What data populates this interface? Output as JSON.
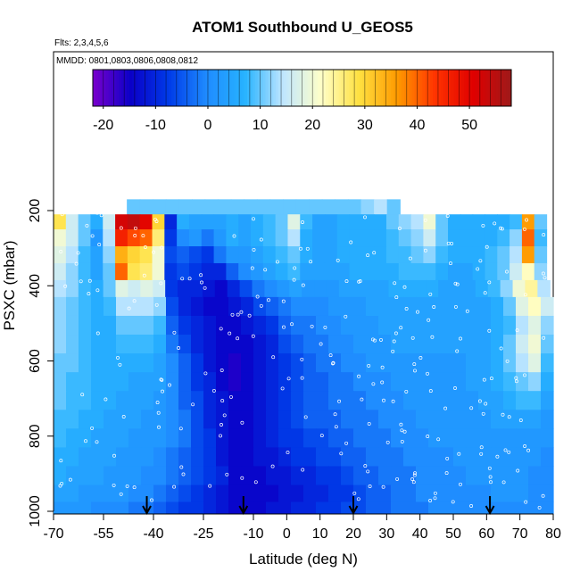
{
  "chart_data": {
    "type": "heatmap",
    "title": "ATOM1 Southbound U_GEOS5",
    "subtitles": [
      "Flts: 2,3,4,5,6",
      "MMDD: 0801,0803,0806,0808,0812"
    ],
    "xlabel": "Latitude (deg N)",
    "ylabel": "PSXC (mbar)",
    "x_ticks": [
      -70,
      -55,
      -40,
      -25,
      -10,
      0,
      10,
      20,
      30,
      40,
      50,
      60,
      70,
      80
    ],
    "y_ticks": [
      200,
      400,
      600,
      800,
      1000
    ],
    "xlim": [
      -70,
      80
    ],
    "ylim": [
      1000,
      120
    ],
    "y_reversed": true,
    "colorbar": {
      "ticks": [
        -20,
        -10,
        0,
        10,
        20,
        30,
        40,
        50
      ],
      "range": [
        -22,
        58
      ],
      "colors": [
        "#7a00cc",
        "#0a00c8",
        "#003be8",
        "#1f8cff",
        "#27b3ff",
        "#bfe6ff",
        "#ffffc8",
        "#ffe040",
        "#ff9a00",
        "#ff3300",
        "#e00000",
        "#9e1a1a"
      ]
    },
    "layers": [
      {
        "p_top": 170,
        "p_bot": 210,
        "x_start": -48,
        "x_end": 34,
        "values": [
          10,
          10,
          10,
          10,
          10,
          10,
          10,
          10,
          10,
          10,
          10,
          10,
          10,
          10,
          10,
          10,
          10,
          10,
          12,
          14,
          10
        ]
      },
      {
        "p_top": 210,
        "p_bot": 250,
        "x_start": -70,
        "x_end": 78,
        "values": [
          28,
          16,
          10,
          6,
          16,
          52,
          54,
          50,
          30,
          -10,
          6,
          4,
          4,
          4,
          6,
          4,
          6,
          8,
          10,
          18,
          8,
          4,
          4,
          6,
          6,
          6,
          6,
          10,
          12,
          14,
          20,
          10,
          6,
          6,
          6,
          6,
          6,
          8,
          36,
          10
        ]
      },
      {
        "p_top": 250,
        "p_bot": 295,
        "x_start": -70,
        "x_end": 78,
        "values": [
          20,
          16,
          10,
          2,
          14,
          46,
          42,
          40,
          26,
          -8,
          0,
          2,
          -2,
          2,
          6,
          4,
          6,
          8,
          10,
          14,
          6,
          4,
          4,
          6,
          6,
          6,
          6,
          8,
          10,
          12,
          16,
          10,
          6,
          6,
          6,
          6,
          8,
          12,
          40,
          8
        ]
      },
      {
        "p_top": 295,
        "p_bot": 340,
        "x_start": -70,
        "x_end": 78,
        "values": [
          18,
          14,
          8,
          4,
          12,
          34,
          30,
          28,
          20,
          -6,
          -4,
          -6,
          -8,
          -2,
          2,
          2,
          4,
          6,
          8,
          10,
          6,
          4,
          4,
          6,
          6,
          6,
          6,
          8,
          8,
          10,
          12,
          8,
          6,
          6,
          6,
          8,
          10,
          14,
          36,
          10
        ]
      },
      {
        "p_top": 340,
        "p_bot": 385,
        "x_start": -70,
        "x_end": 78,
        "values": [
          16,
          12,
          8,
          4,
          10,
          40,
          28,
          26,
          20,
          -8,
          -6,
          -8,
          -10,
          -10,
          -4,
          0,
          2,
          4,
          6,
          8,
          4,
          4,
          4,
          4,
          6,
          6,
          6,
          6,
          8,
          8,
          8,
          6,
          4,
          4,
          6,
          8,
          10,
          16,
          22,
          12
        ]
      },
      {
        "p_top": 385,
        "p_bot": 430,
        "x_start": -70,
        "x_end": 79,
        "values": [
          14,
          12,
          8,
          6,
          10,
          18,
          16,
          18,
          16,
          -8,
          -10,
          -10,
          -12,
          -14,
          -10,
          -6,
          -2,
          0,
          2,
          4,
          2,
          2,
          2,
          4,
          4,
          4,
          4,
          6,
          6,
          6,
          6,
          4,
          4,
          4,
          6,
          8,
          12,
          20,
          24,
          14
        ]
      },
      {
        "p_top": 430,
        "p_bot": 480,
        "x_start": -70,
        "x_end": 80,
        "values": [
          12,
          10,
          8,
          6,
          8,
          14,
          14,
          14,
          12,
          -6,
          -10,
          -12,
          -14,
          -14,
          -12,
          -10,
          -6,
          -4,
          -2,
          0,
          0,
          0,
          2,
          2,
          2,
          4,
          4,
          4,
          4,
          4,
          4,
          4,
          4,
          4,
          4,
          6,
          10,
          18,
          22,
          16
        ]
      },
      {
        "p_top": 480,
        "p_bot": 530,
        "x_start": -70,
        "x_end": 80,
        "values": [
          12,
          10,
          8,
          6,
          6,
          10,
          10,
          10,
          8,
          -4,
          -8,
          -10,
          -12,
          -14,
          -14,
          -12,
          -10,
          -8,
          -4,
          -2,
          -2,
          0,
          0,
          2,
          2,
          2,
          4,
          4,
          4,
          4,
          4,
          4,
          4,
          4,
          4,
          6,
          8,
          14,
          18,
          12
        ]
      },
      {
        "p_top": 530,
        "p_bot": 580,
        "x_start": -70,
        "x_end": 80,
        "values": [
          12,
          10,
          8,
          6,
          6,
          8,
          8,
          8,
          6,
          -2,
          -6,
          -10,
          -12,
          -14,
          -14,
          -14,
          -12,
          -10,
          -6,
          -4,
          -2,
          -2,
          0,
          0,
          2,
          2,
          2,
          4,
          4,
          4,
          4,
          4,
          4,
          4,
          4,
          6,
          10,
          16,
          20,
          10
        ]
      },
      {
        "p_top": 580,
        "p_bot": 630,
        "x_start": -70,
        "x_end": 80,
        "values": [
          10,
          10,
          8,
          6,
          6,
          6,
          6,
          6,
          4,
          0,
          -4,
          -8,
          -12,
          -14,
          -16,
          -14,
          -12,
          -10,
          -8,
          -6,
          -4,
          -2,
          -2,
          0,
          0,
          2,
          2,
          2,
          2,
          2,
          2,
          2,
          2,
          4,
          4,
          6,
          10,
          14,
          18,
          8
        ]
      },
      {
        "p_top": 630,
        "p_bot": 680,
        "x_start": -70,
        "x_end": 80,
        "values": [
          10,
          8,
          8,
          6,
          6,
          6,
          4,
          4,
          4,
          0,
          -4,
          -8,
          -10,
          -14,
          -16,
          -14,
          -12,
          -10,
          -8,
          -6,
          -4,
          -4,
          -2,
          -2,
          0,
          0,
          0,
          2,
          2,
          2,
          2,
          2,
          2,
          4,
          4,
          6,
          8,
          10,
          12,
          6
        ]
      },
      {
        "p_top": 680,
        "p_bot": 730,
        "x_start": -70,
        "x_end": 80,
        "values": [
          10,
          8,
          8,
          6,
          6,
          4,
          4,
          4,
          2,
          0,
          -4,
          -6,
          -10,
          -12,
          -14,
          -14,
          -12,
          -10,
          -8,
          -6,
          -4,
          -4,
          -2,
          -2,
          -2,
          0,
          0,
          0,
          2,
          2,
          2,
          2,
          2,
          2,
          4,
          4,
          6,
          8,
          8,
          4
        ]
      },
      {
        "p_top": 730,
        "p_bot": 780,
        "x_start": -70,
        "x_end": 80,
        "values": [
          8,
          8,
          6,
          6,
          4,
          4,
          4,
          2,
          2,
          0,
          -2,
          -6,
          -10,
          -12,
          -14,
          -14,
          -12,
          -10,
          -8,
          -6,
          -4,
          -4,
          -4,
          -2,
          -2,
          -2,
          0,
          0,
          0,
          2,
          2,
          2,
          2,
          2,
          2,
          4,
          4,
          4,
          4,
          2
        ]
      },
      {
        "p_top": 780,
        "p_bot": 830,
        "x_start": -70,
        "x_end": 80,
        "values": [
          8,
          6,
          6,
          4,
          4,
          4,
          2,
          2,
          2,
          0,
          -2,
          -6,
          -8,
          -12,
          -14,
          -14,
          -12,
          -10,
          -8,
          -8,
          -6,
          -6,
          -4,
          -4,
          -2,
          -2,
          -2,
          0,
          0,
          0,
          2,
          2,
          2,
          2,
          2,
          2,
          2,
          2,
          2,
          2
        ]
      },
      {
        "p_top": 830,
        "p_bot": 880,
        "x_start": -70,
        "x_end": 80,
        "values": [
          6,
          6,
          4,
          4,
          4,
          2,
          2,
          2,
          0,
          -2,
          -4,
          -6,
          -8,
          -12,
          -14,
          -14,
          -12,
          -12,
          -10,
          -8,
          -8,
          -6,
          -6,
          -4,
          -4,
          -2,
          -2,
          -2,
          0,
          0,
          0,
          0,
          2,
          2,
          2,
          2,
          2,
          2,
          2,
          0
        ]
      },
      {
        "p_top": 880,
        "p_bot": 930,
        "x_start": -70,
        "x_end": 80,
        "values": [
          6,
          4,
          4,
          4,
          2,
          2,
          2,
          0,
          0,
          -2,
          -4,
          -6,
          -8,
          -10,
          -14,
          -14,
          -14,
          -12,
          -12,
          -10,
          -10,
          -8,
          -8,
          -6,
          -4,
          -4,
          -2,
          -2,
          -2,
          0,
          0,
          0,
          0,
          2,
          2,
          2,
          2,
          2,
          0,
          0
        ]
      },
      {
        "p_top": 930,
        "p_bot": 975,
        "x_start": -70,
        "x_end": 80,
        "values": [
          4,
          4,
          2,
          2,
          2,
          2,
          0,
          0,
          -2,
          -4,
          -6,
          -8,
          -10,
          -12,
          -14,
          -14,
          -14,
          -14,
          -12,
          -12,
          -10,
          -10,
          -8,
          -8,
          -6,
          -4,
          -4,
          -2,
          -2,
          0,
          0,
          0,
          0,
          0,
          0,
          2,
          2,
          2,
          0,
          0
        ]
      },
      {
        "p_top": 975,
        "p_bot": 1005,
        "x_start": -70,
        "x_end": 80,
        "values": [
          2,
          2,
          2,
          0,
          0,
          0,
          -2,
          -2,
          -4,
          -6,
          -8,
          -8,
          -10,
          -12,
          -14,
          -14,
          -14,
          -12,
          -12,
          -10,
          -10,
          -8,
          -8,
          -6,
          -6,
          -4,
          -4,
          -2,
          -2,
          -2,
          0,
          0,
          0,
          0,
          0,
          0,
          0,
          0,
          0,
          0
        ]
      }
    ],
    "arrow_markers_lat": [
      -42,
      -13,
      20,
      61
    ]
  }
}
